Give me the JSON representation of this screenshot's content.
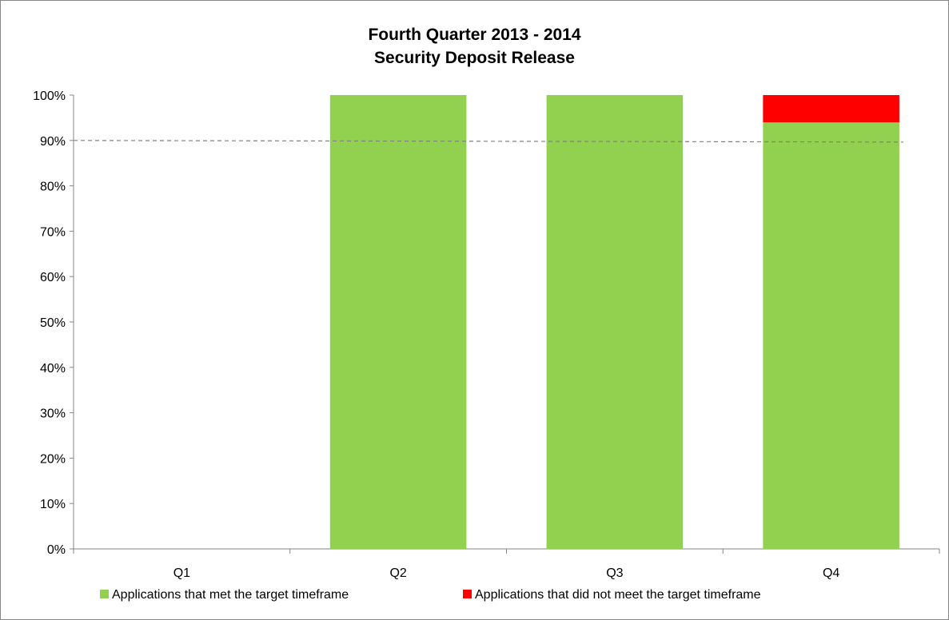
{
  "chart_data": {
    "type": "bar",
    "stacked": true,
    "title": "Fourth Quarter 2013 - 2014",
    "subtitle": "Security Deposit Release",
    "categories": [
      "Q1",
      "Q2",
      "Q3",
      "Q4"
    ],
    "series": [
      {
        "name": "Applications that met the target timeframe",
        "color": "#92d050",
        "values": [
          0,
          100,
          100,
          94
        ]
      },
      {
        "name": "Applications that did not meet the target timeframe",
        "color": "#ff0000",
        "values": [
          0,
          0,
          0,
          6
        ]
      }
    ],
    "ylim": [
      0,
      100
    ],
    "yticks": [
      "0%",
      "10%",
      "20%",
      "30%",
      "40%",
      "50%",
      "60%",
      "70%",
      "80%",
      "90%",
      "100%"
    ],
    "target_line": {
      "value": 90,
      "style": "dashed",
      "color": "#808080"
    },
    "grid": false,
    "legend_position": "bottom"
  }
}
